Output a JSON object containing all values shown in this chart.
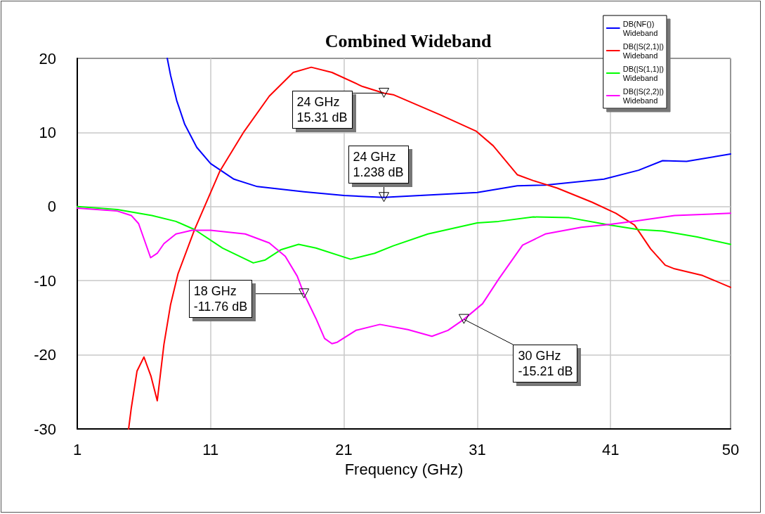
{
  "chart_data": {
    "type": "line",
    "title": "Combined Wideband",
    "xlabel": "Frequency (GHz)",
    "xlim": [
      1,
      50
    ],
    "xticks": [
      1,
      11,
      21,
      31,
      41,
      50
    ],
    "ylim": [
      -30,
      20
    ],
    "yticks": [
      -30,
      -20,
      -10,
      0,
      10,
      20
    ],
    "grid": true,
    "legend": "top right",
    "marker": "none",
    "line_style": "solid",
    "series": [
      {
        "name": "DB(NF())\nWideband",
        "color": "#0000ff",
        "x": [
          7.75,
          8.0,
          8.46,
          9.06,
          9.96,
          11.0,
          12.75,
          14.5,
          18,
          21,
          24,
          24.7,
          31,
          34,
          36.1,
          40.5,
          43.1,
          44.9,
          46.7,
          50
        ],
        "values": [
          20,
          17.7,
          14.3,
          11.1,
          8.0,
          5.8,
          3.7,
          2.7,
          2.0,
          1.5,
          1.238,
          1.3,
          1.9,
          2.8,
          2.9,
          3.7,
          4.9,
          6.2,
          6.1,
          7.1
        ]
      },
      {
        "name": "DB(|S(2,1)|)\nWideband",
        "color": "#ff0000",
        "x": [
          4.85,
          5.05,
          5.48,
          6.0,
          6.53,
          7.0,
          7.5,
          8.0,
          8.55,
          9.8,
          11.7,
          13.5,
          15.4,
          17.2,
          18.55,
          20.1,
          22.4,
          24,
          24.7,
          28.2,
          30.9,
          32.2,
          34,
          35.2,
          37,
          39.6,
          41.4,
          42.8,
          44,
          45.1,
          45.8,
          47.9,
          50
        ],
        "values": [
          -30,
          -27.2,
          -22.2,
          -20.3,
          -22.9,
          -26.2,
          -18.6,
          -13.2,
          -9.1,
          -3.1,
          4.8,
          10.1,
          14.9,
          18.1,
          18.8,
          18.1,
          16.2,
          15.31,
          15.1,
          12.4,
          10.2,
          8.2,
          4.3,
          3.5,
          2.5,
          0.6,
          -0.9,
          -2.5,
          -5.7,
          -7.9,
          -8.4,
          -9.3,
          -10.9
        ]
      },
      {
        "name": "DB(|S(1,1)|)\nWideband",
        "color": "#00ff00",
        "x": [
          1,
          4,
          6.6,
          8.4,
          9.8,
          11.9,
          14.2,
          15.1,
          16.3,
          17.6,
          18.9,
          21.5,
          23.3,
          24.7,
          27.3,
          31,
          32.6,
          35.2,
          37.9,
          41,
          43.1,
          44.9,
          47.5,
          50
        ],
        "values": [
          0,
          -0.4,
          -1.2,
          -2.0,
          -3.1,
          -5.6,
          -7.6,
          -7.2,
          -5.8,
          -5.1,
          -5.6,
          -7.1,
          -6.3,
          -5.3,
          -3.7,
          -2.2,
          -2.0,
          -1.4,
          -1.5,
          -2.5,
          -3.1,
          -3.3,
          -4.1,
          -5.1
        ]
      },
      {
        "name": "DB(|S(2,2)|)\nWideband",
        "color": "#ff00ff",
        "x": [
          1,
          4,
          5.05,
          5.6,
          6.5,
          7.0,
          7.5,
          8.4,
          9.6,
          11,
          13.6,
          15.4,
          16.6,
          17.5,
          18,
          18.9,
          19.55,
          20.1,
          20.5,
          21.9,
          23.7,
          25.8,
          27.6,
          28.8,
          30,
          31.4,
          32.6,
          34.4,
          36.1,
          38.8,
          41,
          43.1,
          45.8,
          50
        ],
        "values": [
          -0.2,
          -0.6,
          -1.2,
          -2.3,
          -6.9,
          -6.3,
          -5.0,
          -3.7,
          -3.2,
          -3.2,
          -3.7,
          -4.9,
          -6.7,
          -9.4,
          -11.76,
          -15.1,
          -17.8,
          -18.5,
          -18.3,
          -16.7,
          -15.9,
          -16.6,
          -17.5,
          -16.7,
          -15.21,
          -13.1,
          -9.8,
          -5.2,
          -3.7,
          -2.8,
          -2.4,
          -1.9,
          -1.2,
          -0.9
        ]
      }
    ],
    "annotations": [
      {
        "text": "24 GHz\n15.31 dB",
        "x": 24,
        "y": 15.31
      },
      {
        "text": "24 GHz\n1.238 dB",
        "x": 24,
        "y": 1.238
      },
      {
        "text": "18 GHz\n-11.76 dB",
        "x": 18,
        "y": -11.76
      },
      {
        "text": "30 GHz\n-15.21 dB",
        "x": 30,
        "y": -15.21
      }
    ]
  }
}
